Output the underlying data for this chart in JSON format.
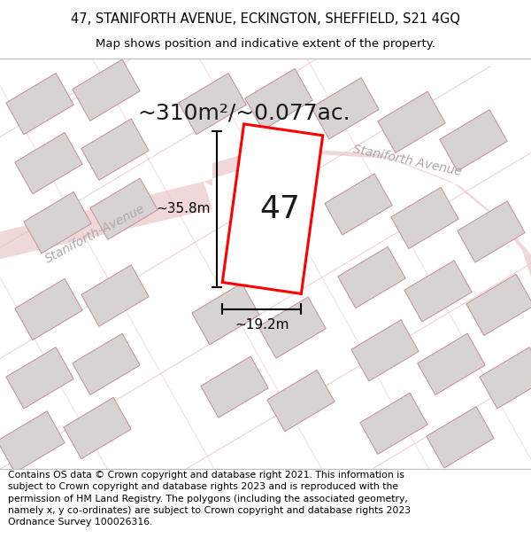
{
  "title_line1": "47, STANIFORTH AVENUE, ECKINGTON, SHEFFIELD, S21 4GQ",
  "title_line2": "Map shows position and indicative extent of the property.",
  "footer_text": "Contains OS data © Crown copyright and database right 2021. This information is subject to Crown copyright and database rights 2023 and is reproduced with the permission of HM Land Registry. The polygons (including the associated geometry, namely x, y co-ordinates) are subject to Crown copyright and database rights 2023 Ordnance Survey 100026316.",
  "area_label": "~310m²/~0.077ac.",
  "number_label": "47",
  "dim_height": "~35.8m",
  "dim_width": "~19.2m",
  "street_label_lower": "Staniforth-Avenue",
  "street_label_upper": "Staniforth Avenue",
  "map_bg": "#f2eeee",
  "plot_color": "#ff0000",
  "plot_fill": "#ffffff",
  "building_fill": "#d8d3d3",
  "building_edge": "#c89898",
  "road_fill": "#f0d8d8",
  "title_fontsize": 10.5,
  "subtitle_fontsize": 9.5,
  "footer_fontsize": 7.8,
  "area_fontsize": 18,
  "number_fontsize": 26,
  "dim_fontsize": 11,
  "street_fontsize": 10
}
